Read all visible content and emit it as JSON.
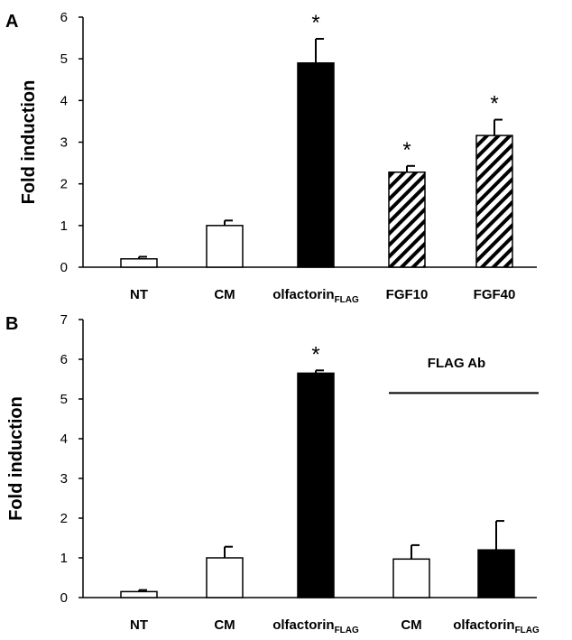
{
  "chart_data": [
    {
      "panel": "A",
      "type": "bar",
      "ylabel": "Fold induction",
      "ylim": [
        0,
        6
      ],
      "yticks": [
        "0",
        "1",
        "2",
        "3",
        "4",
        "5",
        "6"
      ],
      "categories": [
        {
          "main": "NT",
          "sub": ""
        },
        {
          "main": "CM",
          "sub": ""
        },
        {
          "main": "olfactorin",
          "sub": "FLAG"
        },
        {
          "main": "FGF10",
          "sub": ""
        },
        {
          "main": "FGF40",
          "sub": ""
        }
      ],
      "values": [
        0.2,
        1.0,
        4.9,
        2.28,
        3.16
      ],
      "errors": [
        0.05,
        0.12,
        0.58,
        0.15,
        0.38
      ],
      "fills": [
        "white",
        "white",
        "black",
        "hatch",
        "hatch"
      ],
      "significance": [
        "",
        "",
        "*",
        "*",
        "*"
      ],
      "annotation": null
    },
    {
      "panel": "B",
      "type": "bar",
      "ylabel": "Fold induction",
      "ylim": [
        0,
        7
      ],
      "yticks": [
        "0",
        "1",
        "2",
        "3",
        "4",
        "5",
        "6",
        "7"
      ],
      "categories": [
        {
          "main": "NT",
          "sub": ""
        },
        {
          "main": "CM",
          "sub": ""
        },
        {
          "main": "olfactorin",
          "sub": "FLAG"
        },
        {
          "main": "CM",
          "sub": ""
        },
        {
          "main": "olfactorin",
          "sub": "FLAG"
        }
      ],
      "values": [
        0.15,
        1.0,
        5.65,
        0.97,
        1.2
      ],
      "errors": [
        0.04,
        0.28,
        0.07,
        0.35,
        0.73
      ],
      "fills": [
        "white",
        "white",
        "black",
        "white",
        "black"
      ],
      "significance": [
        "",
        "",
        "*",
        "",
        ""
      ],
      "annotation": {
        "text": "FLAG Ab",
        "from_index": 3,
        "to_index": 4
      }
    }
  ]
}
